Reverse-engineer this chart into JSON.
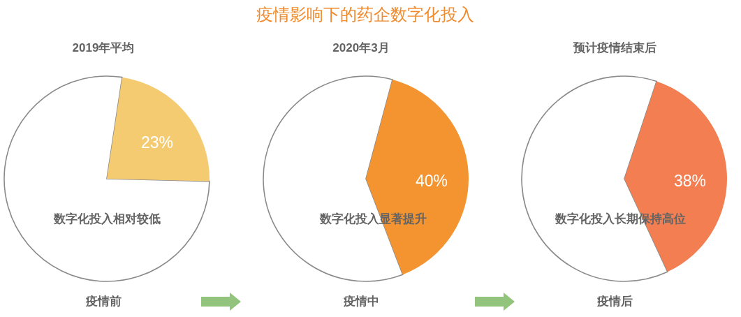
{
  "chart_data": [
    {
      "type": "other",
      "title": "疫情影响下的药企数字化投入"
    },
    {
      "type": "pie",
      "title": "2019年平均",
      "categories": [
        null,
        null
      ],
      "values": [
        23,
        77
      ],
      "colors": [
        "#f5cb72",
        "#ffffff"
      ],
      "value_labels": [
        "23%",
        null
      ],
      "annotations": [
        "数字化投入相对较低"
      ],
      "xlabel": "疫情前"
    },
    {
      "type": "pie",
      "title": "2020年3月",
      "categories": [
        null,
        null
      ],
      "values": [
        40,
        60
      ],
      "colors": [
        "#f39431",
        "#ffffff"
      ],
      "value_labels": [
        "40%",
        null
      ],
      "annotations": [
        "数字化投入显著提升"
      ],
      "xlabel": "疫情中"
    },
    {
      "type": "pie",
      "title": "预计疫情结束后",
      "categories": [
        null,
        null
      ],
      "values": [
        38,
        62
      ],
      "colors": [
        "#f27e51",
        "#ffffff"
      ],
      "value_labels": [
        "38%",
        null
      ],
      "annotations": [
        "数字化投入长期保持高位"
      ],
      "xlabel": "疫情后"
    }
  ]
}
